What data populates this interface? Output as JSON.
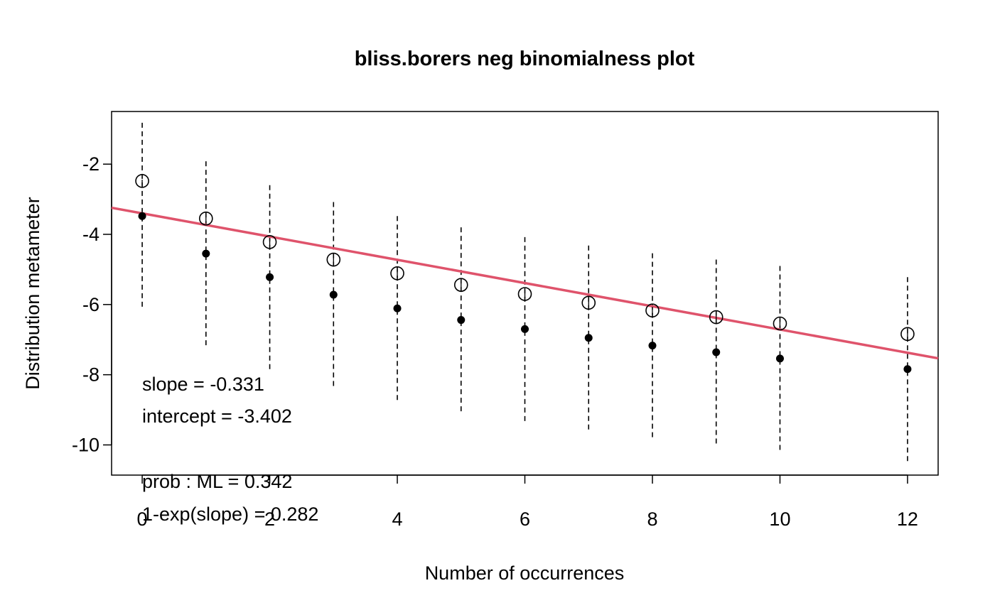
{
  "chart_data": {
    "type": "scatter",
    "title": "bliss.borers neg binomialness plot",
    "xlabel": "Number of occurrences",
    "ylabel": "Distribution metameter",
    "xlim": [
      -0.48,
      12.48
    ],
    "ylim": [
      -10.86,
      -0.5
    ],
    "x_ticks": [
      0,
      2,
      4,
      6,
      8,
      10,
      12
    ],
    "y_ticks": [
      -2,
      -4,
      -6,
      -8,
      -10
    ],
    "x_tick_labels": [
      "0",
      "2",
      "4",
      "6",
      "8",
      "10",
      "12"
    ],
    "y_tick_labels": [
      "-2",
      "-4",
      "-6",
      "-8",
      "-10"
    ],
    "grid": false,
    "fit_line": {
      "slope": -0.331,
      "intercept": -3.402,
      "color": "#DF536B"
    },
    "counts": [
      0,
      1,
      2,
      3,
      4,
      5,
      6,
      7,
      8,
      9,
      10,
      12
    ],
    "series": [
      {
        "role": "open-circles",
        "marker_label": "i",
        "values": [
          -2.48,
          -3.55,
          -4.22,
          -4.72,
          -5.11,
          -5.44,
          -5.7,
          -5.95,
          -6.17,
          -6.36,
          -6.54,
          -6.84
        ]
      },
      {
        "role": "filled-points",
        "values": [
          -3.48,
          -4.55,
          -5.22,
          -5.72,
          -6.11,
          -6.44,
          -6.7,
          -6.95,
          -7.17,
          -7.36,
          -7.54,
          -7.84
        ]
      }
    ],
    "confidence_intervals": {
      "lower": [
        -6.15,
        -7.25,
        -7.92,
        -8.38,
        -8.78,
        -9.1,
        -9.38,
        -9.62,
        -9.82,
        -10.02,
        -10.2,
        -10.5
      ],
      "upper": [
        -0.82,
        -1.92,
        -2.6,
        -3.08,
        -3.48,
        -3.8,
        -4.08,
        -4.32,
        -4.54,
        -4.72,
        -4.9,
        -5.22
      ]
    },
    "annotations": [
      "slope = -0.331",
      "intercept = -3.402",
      "prob : ML = 0.342",
      "1-exp(slope) = 0.282"
    ]
  }
}
